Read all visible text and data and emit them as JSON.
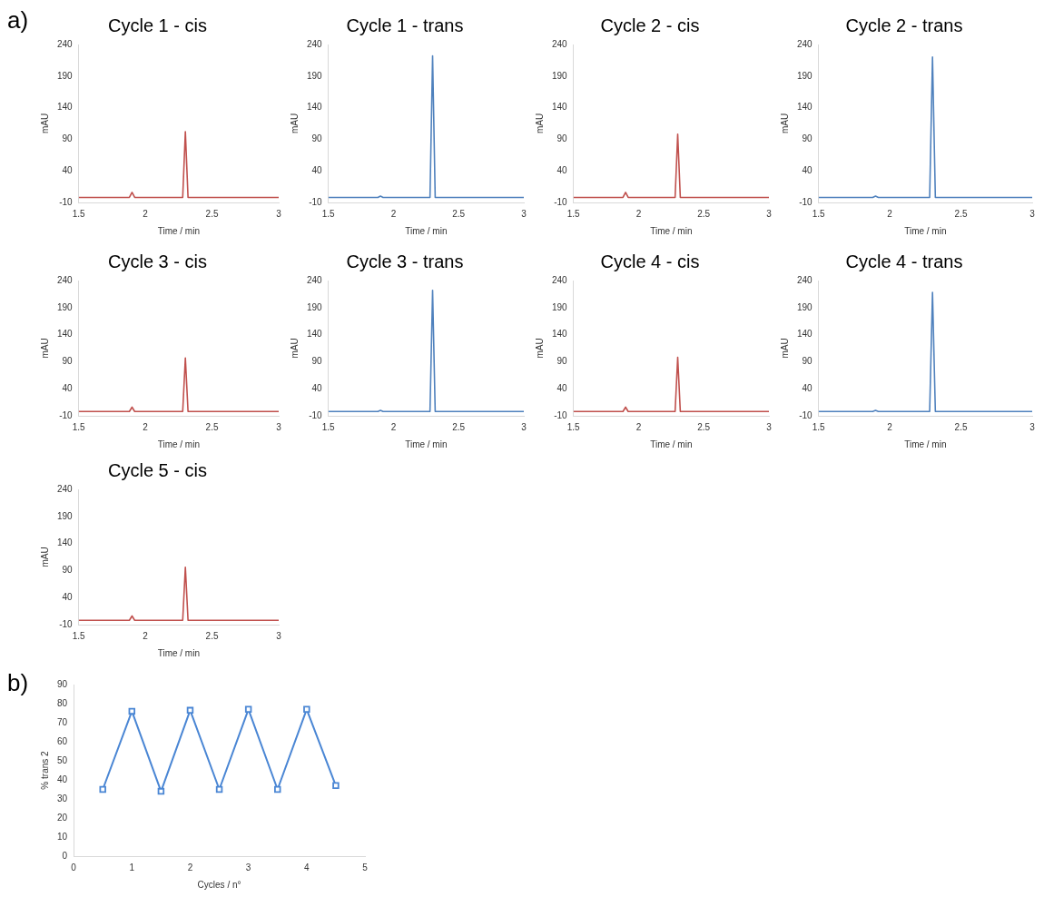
{
  "chart_data": [
    {
      "type": "line",
      "title": "Cycle 1 - cis",
      "annotations": [
        "a)"
      ],
      "xlabel": "Time / min",
      "ylabel": "mAU",
      "xlim": [
        1.5,
        3
      ],
      "xticks": [
        1.5,
        2,
        2.5,
        3
      ],
      "ylim": [
        -10,
        240
      ],
      "yticks": [
        -10,
        40,
        90,
        140,
        190,
        240
      ],
      "grid": false,
      "marker": "none",
      "series": [
        {
          "color": "#c0504d",
          "x": [
            1.5,
            1.88,
            1.9,
            1.92,
            2.28,
            2.3,
            2.32,
            3
          ],
          "values": [
            -2,
            -2,
            6,
            -2,
            -2,
            102,
            -2,
            -2
          ]
        }
      ]
    },
    {
      "type": "line",
      "title": "Cycle 1 - trans",
      "xlabel": "Time / min",
      "ylabel": "mAU",
      "xlim": [
        1.5,
        3
      ],
      "xticks": [
        1.5,
        2,
        2.5,
        3
      ],
      "ylim": [
        -10,
        240
      ],
      "yticks": [
        -10,
        40,
        90,
        140,
        190,
        240
      ],
      "grid": false,
      "marker": "none",
      "series": [
        {
          "color": "#4f81bd",
          "x": [
            1.5,
            1.88,
            1.9,
            1.92,
            2.28,
            2.3,
            2.32,
            3
          ],
          "values": [
            -2,
            -2,
            0,
            -2,
            -2,
            222,
            -2,
            -2
          ]
        }
      ]
    },
    {
      "type": "line",
      "title": "Cycle 2 - cis",
      "xlabel": "Time / min",
      "ylabel": "mAU",
      "xlim": [
        1.5,
        3
      ],
      "xticks": [
        1.5,
        2,
        2.5,
        3
      ],
      "ylim": [
        -10,
        240
      ],
      "yticks": [
        -10,
        40,
        90,
        140,
        190,
        240
      ],
      "grid": false,
      "marker": "none",
      "series": [
        {
          "color": "#c0504d",
          "x": [
            1.5,
            1.88,
            1.9,
            1.92,
            2.28,
            2.3,
            2.32,
            3
          ],
          "values": [
            -2,
            -2,
            6,
            -2,
            -2,
            98,
            -2,
            -2
          ]
        }
      ]
    },
    {
      "type": "line",
      "title": "Cycle 2 - trans",
      "xlabel": "Time / min",
      "ylabel": "mAU",
      "xlim": [
        1.5,
        3
      ],
      "xticks": [
        1.5,
        2,
        2.5,
        3
      ],
      "ylim": [
        -10,
        240
      ],
      "yticks": [
        -10,
        40,
        90,
        140,
        190,
        240
      ],
      "grid": false,
      "marker": "none",
      "series": [
        {
          "color": "#4f81bd",
          "x": [
            1.5,
            1.88,
            1.9,
            1.92,
            2.28,
            2.3,
            2.32,
            3
          ],
          "values": [
            -2,
            -2,
            0,
            -2,
            -2,
            220,
            -2,
            -2
          ]
        }
      ]
    },
    {
      "type": "line",
      "title": "Cycle 3 - cis",
      "xlabel": "Time / min",
      "ylabel": "mAU",
      "xlim": [
        1.5,
        3
      ],
      "xticks": [
        1.5,
        2,
        2.5,
        3
      ],
      "ylim": [
        -10,
        240
      ],
      "yticks": [
        -10,
        40,
        90,
        140,
        190,
        240
      ],
      "grid": false,
      "marker": "none",
      "series": [
        {
          "color": "#c0504d",
          "x": [
            1.5,
            1.88,
            1.9,
            1.92,
            2.28,
            2.3,
            2.32,
            3
          ],
          "values": [
            -2,
            -2,
            6,
            -2,
            -2,
            97,
            -2,
            -2
          ]
        }
      ]
    },
    {
      "type": "line",
      "title": "Cycle 3 - trans",
      "xlabel": "Time / min",
      "ylabel": "mAU",
      "xlim": [
        1.5,
        3
      ],
      "xticks": [
        1.5,
        2,
        2.5,
        3
      ],
      "ylim": [
        -10,
        240
      ],
      "yticks": [
        -10,
        40,
        90,
        140,
        190,
        240
      ],
      "grid": false,
      "marker": "none",
      "series": [
        {
          "color": "#4f81bd",
          "x": [
            1.5,
            1.88,
            1.9,
            1.92,
            2.28,
            2.3,
            2.32,
            3
          ],
          "values": [
            -2,
            -2,
            0,
            -2,
            -2,
            222,
            -2,
            -2
          ]
        }
      ]
    },
    {
      "type": "line",
      "title": "Cycle 4 - cis",
      "xlabel": "Time / min",
      "ylabel": "mAU",
      "xlim": [
        1.5,
        3
      ],
      "xticks": [
        1.5,
        2,
        2.5,
        3
      ],
      "ylim": [
        -10,
        240
      ],
      "yticks": [
        -10,
        40,
        90,
        140,
        190,
        240
      ],
      "grid": false,
      "marker": "none",
      "series": [
        {
          "color": "#c0504d",
          "x": [
            1.5,
            1.88,
            1.9,
            1.92,
            2.28,
            2.3,
            2.32,
            3
          ],
          "values": [
            -2,
            -2,
            6,
            -2,
            -2,
            98,
            -2,
            -2
          ]
        }
      ]
    },
    {
      "type": "line",
      "title": "Cycle 4 - trans",
      "xlabel": "Time / min",
      "ylabel": "mAU",
      "xlim": [
        1.5,
        3
      ],
      "xticks": [
        1.5,
        2,
        2.5,
        3
      ],
      "ylim": [
        -10,
        240
      ],
      "yticks": [
        -10,
        40,
        90,
        140,
        190,
        240
      ],
      "grid": false,
      "marker": "none",
      "series": [
        {
          "color": "#4f81bd",
          "x": [
            1.5,
            1.88,
            1.9,
            1.92,
            2.28,
            2.3,
            2.32,
            3
          ],
          "values": [
            -2,
            -2,
            0,
            -2,
            -2,
            218,
            -2,
            -2
          ]
        }
      ]
    },
    {
      "type": "line",
      "title": "Cycle 5 - cis",
      "xlabel": "Time / min",
      "ylabel": "mAU",
      "xlim": [
        1.5,
        3
      ],
      "xticks": [
        1.5,
        2,
        2.5,
        3
      ],
      "ylim": [
        -10,
        240
      ],
      "yticks": [
        -10,
        40,
        90,
        140,
        190,
        240
      ],
      "grid": false,
      "marker": "none",
      "series": [
        {
          "color": "#c0504d",
          "x": [
            1.5,
            1.88,
            1.9,
            1.92,
            2.28,
            2.3,
            2.32,
            3
          ],
          "values": [
            -2,
            -2,
            6,
            -2,
            -2,
            96,
            -2,
            -2
          ]
        }
      ]
    },
    {
      "type": "line",
      "annotations": [
        "b)"
      ],
      "xlabel": "Cycles / n°",
      "ylabel": "% trans 2",
      "xlim": [
        0,
        5
      ],
      "xticks": [
        0,
        1,
        2,
        3,
        4,
        5
      ],
      "ylim": [
        0,
        90
      ],
      "yticks": [
        0,
        10,
        20,
        30,
        40,
        50,
        60,
        70,
        80,
        90
      ],
      "grid": false,
      "marker": "square",
      "series": [
        {
          "color": "#4a86d4",
          "x": [
            0.5,
            1,
            1.5,
            2,
            2.5,
            3,
            3.5,
            4,
            4.5
          ],
          "values": [
            35,
            76,
            34,
            76.5,
            35,
            77,
            35,
            77,
            37
          ]
        }
      ]
    }
  ]
}
